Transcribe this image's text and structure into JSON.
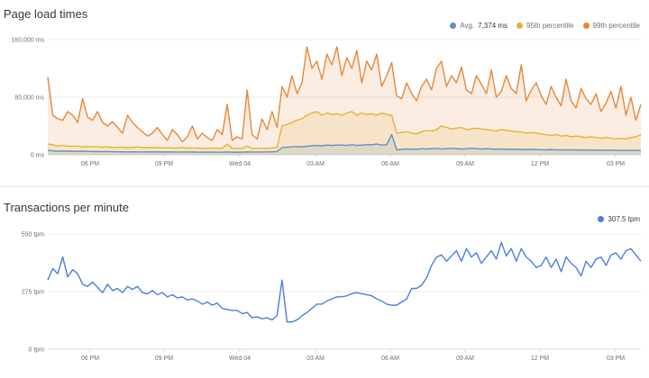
{
  "chart_data": [
    {
      "type": "area",
      "title": "Page load times",
      "yunit": "ms",
      "ylim": [
        0,
        160000
      ],
      "y_ticks": [
        {
          "value": 0,
          "label": "0 ms"
        },
        {
          "value": 80000,
          "label": "80,000 ms"
        },
        {
          "value": 160000,
          "label": "160,000 ms"
        }
      ],
      "x_ticks": [
        "06 PM",
        "09 PM",
        "Wed 04",
        "03 AM",
        "06 AM",
        "09 AM",
        "12 PM",
        "03 PM"
      ],
      "grid": true,
      "legend": "top-right",
      "series": [
        {
          "name": "Avg.",
          "legend_value": "7,374 ms",
          "color": "#6092c0",
          "values": [
            6000,
            5500,
            5000,
            5200,
            5000,
            5000,
            4800,
            5000,
            4800,
            4500,
            4600,
            4500,
            4400,
            4300,
            4200,
            4200,
            4000,
            4200,
            4000,
            4000,
            4200,
            4000,
            4100,
            3900,
            3900,
            4000,
            3800,
            3800,
            3800,
            3900,
            3700,
            3700,
            3600,
            3800,
            3700,
            3700,
            4000,
            3600,
            3600,
            3700,
            4000,
            3800,
            3800,
            3800,
            4000,
            4200,
            4500,
            10000,
            10500,
            11000,
            11500,
            11000,
            12000,
            12500,
            13000,
            12500,
            13500,
            13000,
            13500,
            13500,
            13000,
            14000,
            13000,
            13500,
            14000,
            14000,
            15000,
            13500,
            14000,
            28000,
            7000,
            7500,
            8000,
            7800,
            7500,
            8500,
            8000,
            8500,
            9000,
            8000,
            8500,
            9000,
            8500,
            8000,
            8500,
            9000,
            8500,
            8000,
            8500,
            8000,
            7800,
            8000,
            7500,
            7800,
            7600,
            7500,
            7300,
            7500,
            7200,
            7000,
            7000,
            7200,
            6800,
            6900,
            6800,
            7000,
            6600,
            6800,
            6500,
            6700,
            6400,
            6500,
            6300,
            6500,
            6200,
            6100,
            6000,
            6200,
            6000,
            6000
          ]
        },
        {
          "name": "95th percentile",
          "color": "#e7b236",
          "values": [
            15000,
            14000,
            12000,
            13000,
            12000,
            12000,
            12000,
            11000,
            11500,
            11000,
            11000,
            10500,
            11000,
            10000,
            10500,
            10500,
            10000,
            10000,
            11000,
            10000,
            10000,
            10000,
            10000,
            9500,
            10000,
            9500,
            9500,
            10000,
            9500,
            9500,
            9500,
            9000,
            9000,
            9500,
            9000,
            9000,
            15000,
            9000,
            9000,
            9000,
            12000,
            9000,
            9000,
            9000,
            9000,
            9500,
            10000,
            40000,
            42000,
            45000,
            48000,
            50000,
            55000,
            58000,
            60000,
            55000,
            58000,
            56000,
            57000,
            55000,
            58000,
            60000,
            55000,
            58000,
            56000,
            57000,
            55000,
            58000,
            56000,
            55000,
            30000,
            31000,
            32000,
            30000,
            29000,
            32000,
            34000,
            33000,
            35000,
            40000,
            38000,
            36000,
            37000,
            38000,
            35000,
            36000,
            37000,
            36000,
            35000,
            34000,
            33000,
            35000,
            34000,
            33000,
            32000,
            32000,
            30000,
            31000,
            30000,
            29000,
            28000,
            27000,
            28000,
            26000,
            27000,
            25000,
            26000,
            25000,
            24000,
            25000,
            24000,
            23000,
            24000,
            23000,
            22000,
            23000,
            22000,
            24000,
            25000,
            28000
          ]
        },
        {
          "name": "99th percentile",
          "color": "#e7873a",
          "values": [
            108000,
            55000,
            50000,
            48000,
            60000,
            55000,
            45000,
            78000,
            52000,
            48000,
            60000,
            45000,
            40000,
            46000,
            38000,
            30000,
            55000,
            45000,
            38000,
            32000,
            26000,
            30000,
            38000,
            28000,
            20000,
            35000,
            28000,
            18000,
            25000,
            40000,
            22000,
            30000,
            24000,
            20000,
            35000,
            28000,
            70000,
            20000,
            25000,
            22000,
            90000,
            28000,
            22000,
            50000,
            35000,
            60000,
            38000,
            95000,
            80000,
            110000,
            85000,
            100000,
            150000,
            120000,
            130000,
            105000,
            140000,
            125000,
            150000,
            110000,
            135000,
            120000,
            145000,
            100000,
            130000,
            118000,
            140000,
            95000,
            110000,
            128000,
            82000,
            78000,
            100000,
            85000,
            75000,
            95000,
            105000,
            90000,
            120000,
            130000,
            95000,
            110000,
            100000,
            122000,
            90000,
            85000,
            110000,
            98000,
            85000,
            118000,
            80000,
            88000,
            110000,
            92000,
            85000,
            125000,
            75000,
            90000,
            100000,
            82000,
            70000,
            95000,
            80000,
            68000,
            105000,
            75000,
            65000,
            92000,
            78000,
            70000,
            85000,
            60000,
            72000,
            88000,
            65000,
            95000,
            55000,
            80000,
            48000,
            70000
          ]
        }
      ]
    },
    {
      "type": "line",
      "title": "Transactions per minute",
      "yunit": "tpm",
      "ylim": [
        0,
        550
      ],
      "y_ticks": [
        {
          "value": 0,
          "label": "0 tpm"
        },
        {
          "value": 275,
          "label": "275 tpm"
        },
        {
          "value": 550,
          "label": "550 tpm"
        }
      ],
      "x_ticks": [
        "06 PM",
        "09 PM",
        "Wed 04",
        "03 AM",
        "06 AM",
        "09 AM",
        "12 PM",
        "03 PM"
      ],
      "grid": true,
      "legend": "top-right",
      "series": [
        {
          "name": "",
          "legend_value": "307.5 tpm",
          "color": "#6092c0",
          "values": [
            330,
            385,
            360,
            440,
            345,
            380,
            360,
            310,
            300,
            320,
            295,
            270,
            310,
            280,
            290,
            270,
            300,
            285,
            300,
            270,
            265,
            280,
            260,
            270,
            250,
            260,
            245,
            250,
            235,
            240,
            230,
            215,
            225,
            210,
            220,
            195,
            190,
            185,
            185,
            170,
            175,
            150,
            155,
            145,
            150,
            140,
            160,
            330,
            130,
            130,
            140,
            160,
            175,
            195,
            215,
            215,
            230,
            240,
            250,
            250,
            255,
            265,
            270,
            265,
            260,
            255,
            240,
            230,
            215,
            210,
            210,
            225,
            240,
            290,
            290,
            305,
            340,
            400,
            440,
            450,
            420,
            445,
            470,
            420,
            480,
            440,
            460,
            410,
            440,
            470,
            430,
            510,
            445,
            480,
            420,
            480,
            440,
            420,
            390,
            400,
            440,
            390,
            430,
            370,
            440,
            410,
            390,
            350,
            420,
            390,
            430,
            440,
            400,
            450,
            460,
            430,
            470,
            480,
            450,
            420
          ]
        }
      ]
    }
  ]
}
